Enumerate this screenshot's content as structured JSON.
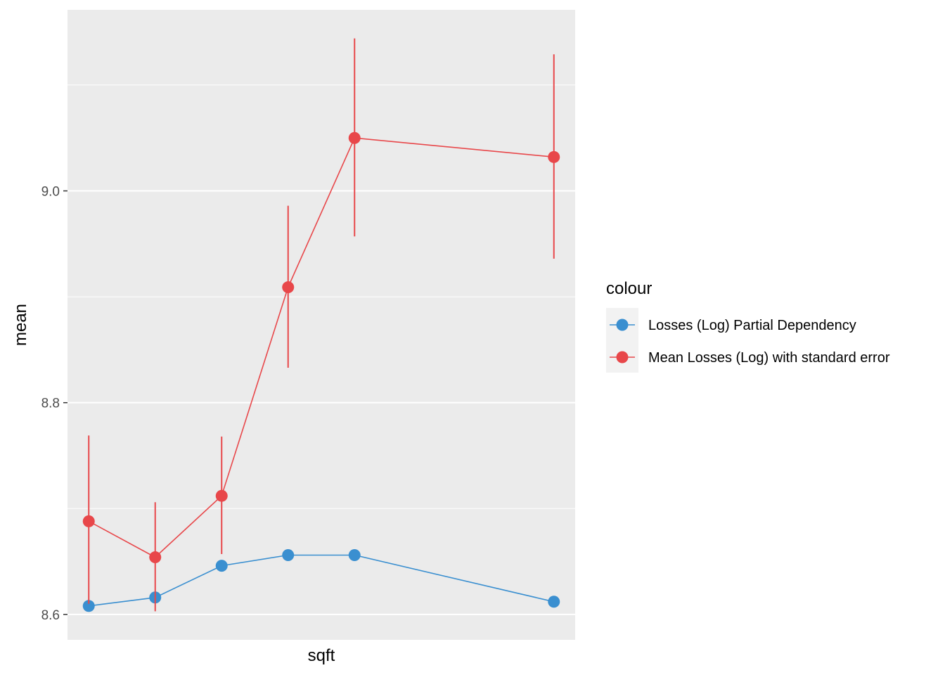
{
  "chart_data": {
    "type": "line",
    "xlabel": "sqft",
    "ylabel": "mean",
    "x_tick_labels": [],
    "y_ticks": [
      8.6,
      8.8,
      9.0
    ],
    "y_tick_labels": [
      "8.6",
      "8.8",
      "9.0"
    ],
    "ylim": [
      8.576,
      9.171
    ],
    "xlim": [
      0.68,
      8.32
    ],
    "x": [
      1,
      2,
      3,
      4,
      5,
      8
    ],
    "grid": true,
    "legend_title": "colour",
    "legend_position": "right",
    "series": [
      {
        "name": "Losses (Log) Partial Dependency",
        "color": "#3A8FD0",
        "values": [
          8.608,
          8.616,
          8.646,
          8.656,
          8.656,
          8.612
        ]
      },
      {
        "name": "Mean Losses (Log) with standard error",
        "color": "#E8474A",
        "values": [
          8.688,
          8.654,
          8.712,
          8.909,
          9.05,
          9.032
        ],
        "lower": [
          8.61,
          8.603,
          8.657,
          8.833,
          8.957,
          8.936
        ],
        "upper": [
          8.769,
          8.706,
          8.768,
          8.986,
          9.144,
          9.129
        ]
      }
    ]
  }
}
